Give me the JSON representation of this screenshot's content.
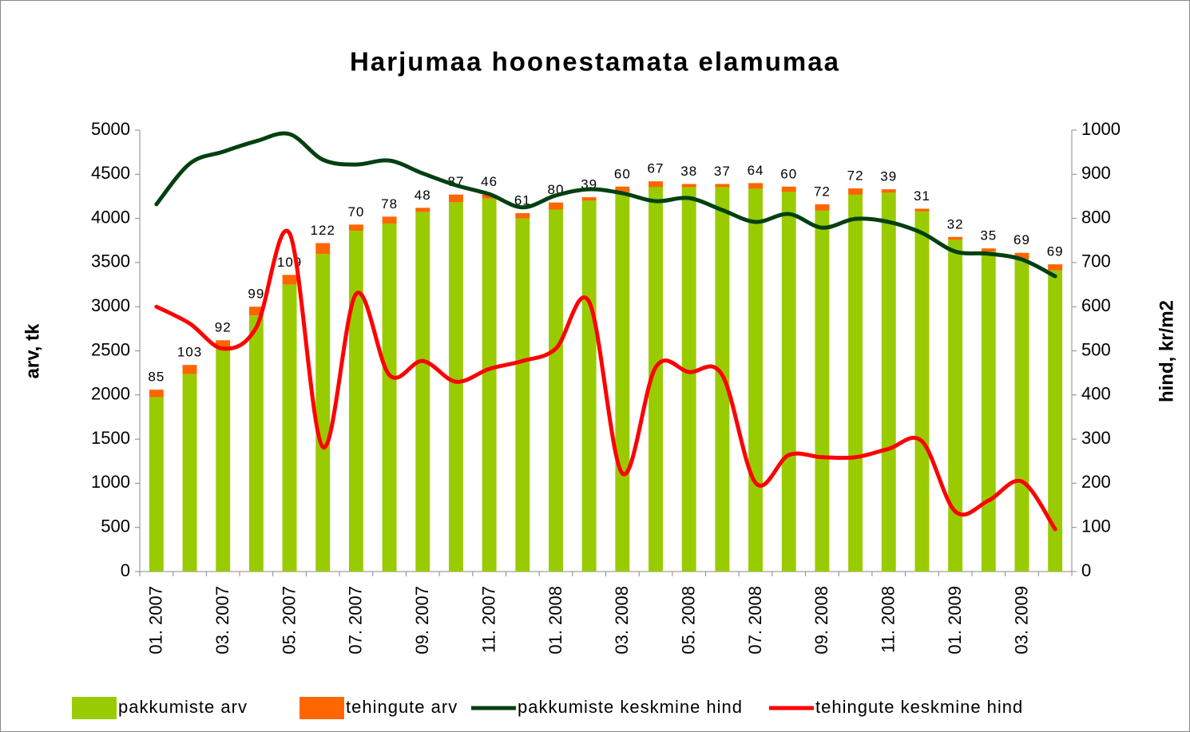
{
  "chart_data": {
    "type": "bar",
    "title": "Harjumaa hoonestamata elamumaa",
    "stacked": true,
    "categories": [
      "01. 2007",
      null,
      "03. 2007",
      null,
      "05. 2007",
      null,
      "07. 2007",
      null,
      "09. 2007",
      null,
      "11. 2007",
      null,
      "01. 2008",
      null,
      "03. 2008",
      null,
      "05. 2008",
      null,
      "07. 2008",
      null,
      "09. 2008",
      null,
      "11. 2008",
      null,
      "01. 2009",
      null,
      "03. 2009",
      null
    ],
    "ylabel": "arv, tk",
    "y2label": "hind, kr/m2",
    "ylim": [
      0,
      5000
    ],
    "yticks": [
      0,
      500,
      1000,
      1500,
      2000,
      2500,
      3000,
      3500,
      4000,
      4500,
      5000
    ],
    "y2lim": [
      0,
      1000
    ],
    "y2ticks": [
      0,
      100,
      200,
      300,
      400,
      500,
      600,
      700,
      800,
      900,
      1000
    ],
    "legend": "bottom",
    "series": [
      {
        "name": "pakkumiste arv",
        "type": "bar",
        "color": "#99cc00",
        "values": [
          1975,
          2237,
          2528,
          2901,
          3251,
          3598,
          3860,
          3942,
          4072,
          4183,
          4224,
          3999,
          4100,
          4201,
          4300,
          4353,
          4352,
          4353,
          4336,
          4300,
          4088,
          4268,
          4291,
          4079,
          3758,
          3625,
          3541,
          3411
        ]
      },
      {
        "name": "tehingute arv",
        "type": "bar",
        "color": "#ff6600",
        "data_labels": true,
        "values": [
          85,
          103,
          92,
          99,
          109,
          122,
          70,
          78,
          48,
          87,
          46,
          61,
          80,
          39,
          60,
          67,
          38,
          37,
          64,
          60,
          72,
          72,
          39,
          31,
          32,
          35,
          69,
          69
        ]
      },
      {
        "name": "pakkumiste keskmine hind",
        "type": "line",
        "axis": "y2",
        "color": "#004010",
        "values": [
          832,
          924,
          951,
          975,
          991,
          933,
          922,
          931,
          902,
          875,
          855,
          825,
          852,
          866,
          857,
          839,
          846,
          819,
          792,
          810,
          779,
          799,
          792,
          767,
          725,
          720,
          707,
          669
        ]
      },
      {
        "name": "tehingute keskmine hind",
        "type": "line",
        "axis": "y2",
        "color": "#ff0000",
        "values": [
          600,
          562,
          505,
          553,
          766,
          282,
          629,
          445,
          477,
          430,
          459,
          477,
          505,
          611,
          222,
          463,
          452,
          445,
          201,
          264,
          259,
          259,
          278,
          295,
          136,
          161,
          204,
          96
        ]
      }
    ]
  }
}
